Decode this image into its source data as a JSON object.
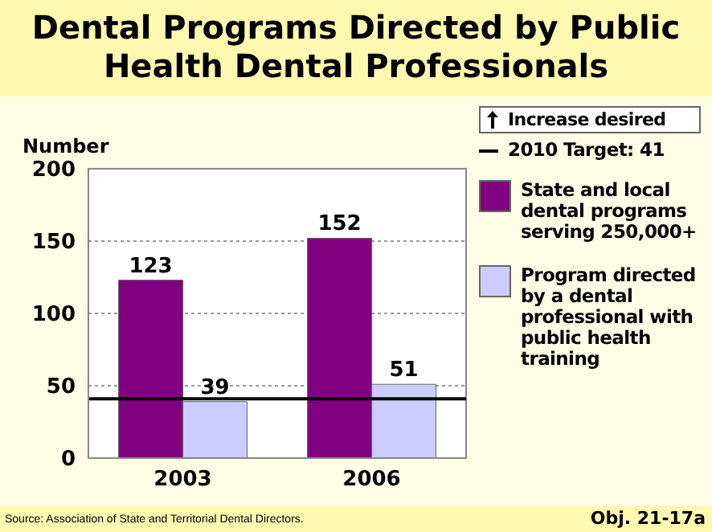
{
  "chart_data": {
    "type": "bar",
    "title": "Dental Programs Directed by Public Health Dental Professionals",
    "ylabel": "Number",
    "categories": [
      "2003",
      "2006"
    ],
    "series": [
      {
        "name": "State and local dental programs serving 250,000+",
        "color": "#800080",
        "values": [
          123,
          152
        ]
      },
      {
        "name": "Program directed by a dental professional with public health training",
        "color": "#ccccff",
        "values": [
          39,
          51
        ]
      }
    ],
    "ylim": [
      0,
      200
    ],
    "yticks": [
      0,
      50,
      100,
      150,
      200
    ],
    "grid": "y",
    "legend": "right",
    "data_labels": true,
    "ref_lines": [
      {
        "axis": "y",
        "value": 41,
        "label": "2010 Target: 41",
        "color": "#000000"
      }
    ],
    "annotations": [
      "Increase desired",
      "Source: Association of State and Territorial Dental Directors.",
      "Obj. 21-17a"
    ]
  }
}
